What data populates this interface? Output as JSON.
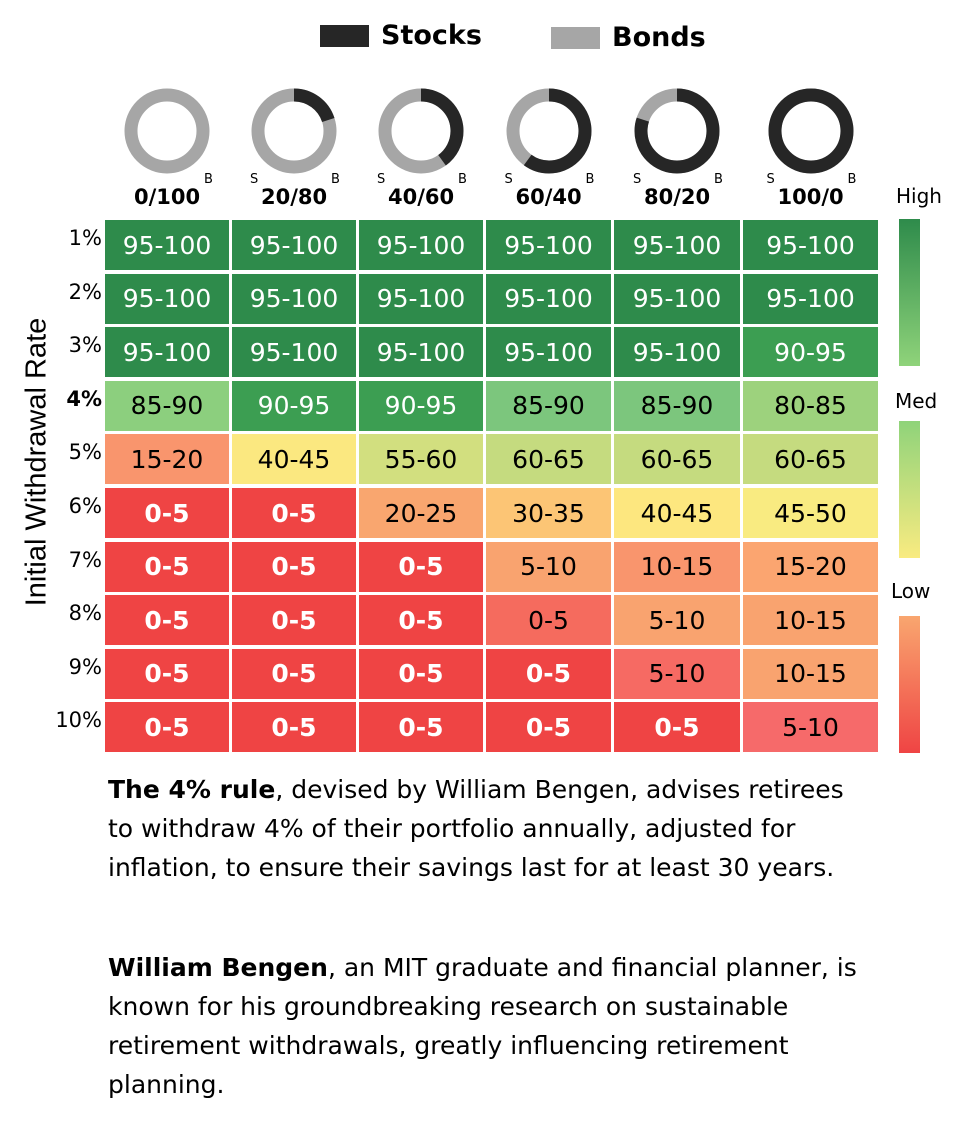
{
  "legend": {
    "stocks_label": "Stocks",
    "bonds_label": "Bonds",
    "stocks_color": "#262626",
    "bonds_color": "#a6a6a6"
  },
  "chart_data": {
    "type": "heatmap",
    "xlabel": "",
    "ylabel": "Initial Withdrawal Rate",
    "columns": [
      {
        "label": "0/100",
        "stocks_pct": 0,
        "prefix": "",
        "suffix": "B"
      },
      {
        "label": "20/80",
        "stocks_pct": 20,
        "prefix": "S",
        "suffix": "B"
      },
      {
        "label": "40/60",
        "stocks_pct": 40,
        "prefix": "S",
        "suffix": "B"
      },
      {
        "label": "60/40",
        "stocks_pct": 60,
        "prefix": "S",
        "suffix": "B"
      },
      {
        "label": "80/20",
        "stocks_pct": 80,
        "prefix": "S",
        "suffix": "B"
      },
      {
        "label": "100/0",
        "stocks_pct": 100,
        "prefix": "S",
        "suffix": "B"
      }
    ],
    "rows": [
      "1%",
      "2%",
      "3%",
      "4%",
      "5%",
      "6%",
      "7%",
      "8%",
      "9%",
      "10%"
    ],
    "highlight_row": "4%",
    "values": [
      [
        "95-100",
        "95-100",
        "95-100",
        "95-100",
        "95-100",
        "95-100"
      ],
      [
        "95-100",
        "95-100",
        "95-100",
        "95-100",
        "95-100",
        "95-100"
      ],
      [
        "95-100",
        "95-100",
        "95-100",
        "95-100",
        "95-100",
        "90-95"
      ],
      [
        "85-90",
        "90-95",
        "90-95",
        "85-90",
        "85-90",
        "80-85"
      ],
      [
        "15-20",
        "40-45",
        "55-60",
        "60-65",
        "60-65",
        "60-65"
      ],
      [
        "0-5",
        "0-5",
        "20-25",
        "30-35",
        "40-45",
        "45-50"
      ],
      [
        "0-5",
        "0-5",
        "0-5",
        "5-10",
        "10-15",
        "15-20"
      ],
      [
        "0-5",
        "0-5",
        "0-5",
        "0-5",
        "5-10",
        "10-15"
      ],
      [
        "0-5",
        "0-5",
        "0-5",
        "0-5",
        "5-10",
        "10-15"
      ],
      [
        "0-5",
        "0-5",
        "0-5",
        "0-5",
        "0-5",
        "5-10"
      ]
    ],
    "cell_colors": [
      [
        "#2e8b4b",
        "#2e8b4b",
        "#2e8b4b",
        "#2e8b4b",
        "#2e8b4b",
        "#2e8b4b"
      ],
      [
        "#2e8b4b",
        "#2e8b4b",
        "#2e8b4b",
        "#2e8b4b",
        "#2e8b4b",
        "#2e8b4b"
      ],
      [
        "#2e8b4b",
        "#2e8b4b",
        "#2e8b4b",
        "#2e8b4b",
        "#2e8b4b",
        "#3c9e52"
      ],
      [
        "#8ccf7e",
        "#3c9e52",
        "#3c9e52",
        "#7cc67d",
        "#7cc67d",
        "#9dd27d"
      ],
      [
        "#f9956d",
        "#fbe880",
        "#d2df7f",
        "#c5db7f",
        "#c5db7f",
        "#c5db7f"
      ],
      [
        "#ef4444",
        "#ef4444",
        "#f9a66f",
        "#fcc575",
        "#fde77f",
        "#f9eb81"
      ],
      [
        "#ef4444",
        "#ef4444",
        "#ef4444",
        "#f9a36f",
        "#f9956d",
        "#fba570"
      ],
      [
        "#ef4444",
        "#ef4444",
        "#ef4444",
        "#f56b5e",
        "#f9a36f",
        "#f9a36f"
      ],
      [
        "#ef4444",
        "#ef4444",
        "#ef4444",
        "#ef4444",
        "#f66a63",
        "#f9a36f"
      ],
      [
        "#ef4444",
        "#ef4444",
        "#ef4444",
        "#ef4444",
        "#ef4444",
        "#f66a6a"
      ]
    ],
    "color_scale": {
      "labels": [
        "High",
        "Med",
        "Low"
      ],
      "colors": [
        "#2e8b4b",
        "#8fd37a",
        "#f9eb81",
        "#f9a66f",
        "#ef4444"
      ]
    }
  },
  "text": {
    "para1_bold": "The 4% rule",
    "para1_rest": ", devised by William Bengen, advises retirees to withdraw 4% of their portfolio annually, adjusted for inflation, to ensure their savings last for at least 30 years.",
    "para2_bold": "William Bengen",
    "para2_rest": ", an MIT graduate and financial planner, is known for his groundbreaking research on sustainable retirement withdrawals, greatly influencing retirement planning."
  }
}
